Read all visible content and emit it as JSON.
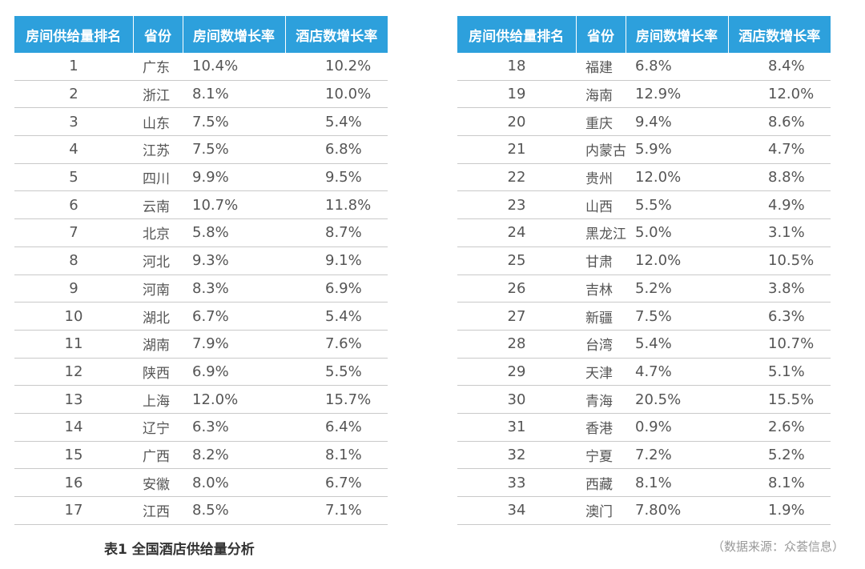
{
  "chart_data": {
    "type": "table",
    "headers": [
      "房间供给量排名",
      "省份",
      "房间数增长率",
      "酒店数增长率"
    ],
    "rows": [
      [
        "1",
        "广东",
        "10.4%",
        "10.2%"
      ],
      [
        "2",
        "浙江",
        "8.1%",
        "10.0%"
      ],
      [
        "3",
        "山东",
        "7.5%",
        "5.4%"
      ],
      [
        "4",
        "江苏",
        "7.5%",
        "6.8%"
      ],
      [
        "5",
        "四川",
        "9.9%",
        "9.5%"
      ],
      [
        "6",
        "云南",
        "10.7%",
        "11.8%"
      ],
      [
        "7",
        "北京",
        "5.8%",
        "8.7%"
      ],
      [
        "8",
        "河北",
        "9.3%",
        "9.1%"
      ],
      [
        "9",
        "河南",
        "8.3%",
        "6.9%"
      ],
      [
        "10",
        "湖北",
        "6.7%",
        "5.4%"
      ],
      [
        "11",
        "湖南",
        "7.9%",
        "7.6%"
      ],
      [
        "12",
        "陕西",
        "6.9%",
        "5.5%"
      ],
      [
        "13",
        "上海",
        "12.0%",
        "15.7%"
      ],
      [
        "14",
        "辽宁",
        "6.3%",
        "6.4%"
      ],
      [
        "15",
        "广西",
        "8.2%",
        "8.1%"
      ],
      [
        "16",
        "安徽",
        "8.0%",
        "6.7%"
      ],
      [
        "17",
        "江西",
        "8.5%",
        "7.1%"
      ],
      [
        "18",
        "福建",
        "6.8%",
        "8.4%"
      ],
      [
        "19",
        "海南",
        "12.9%",
        "12.0%"
      ],
      [
        "20",
        "重庆",
        "9.4%",
        "8.6%"
      ],
      [
        "21",
        "内蒙古",
        "5.9%",
        "4.7%"
      ],
      [
        "22",
        "贵州",
        "12.0%",
        "8.8%"
      ],
      [
        "23",
        "山西",
        "5.5%",
        "4.9%"
      ],
      [
        "24",
        "黑龙江",
        "5.0%",
        "3.1%"
      ],
      [
        "25",
        "甘肃",
        "12.0%",
        "10.5%"
      ],
      [
        "26",
        "吉林",
        "5.2%",
        "3.8%"
      ],
      [
        "27",
        "新疆",
        "7.5%",
        "6.3%"
      ],
      [
        "28",
        "台湾",
        "5.4%",
        "10.7%"
      ],
      [
        "29",
        "天津",
        "4.7%",
        "5.1%"
      ],
      [
        "30",
        "青海",
        "20.5%",
        "15.5%"
      ],
      [
        "31",
        "香港",
        "0.9%",
        "2.6%"
      ],
      [
        "32",
        "宁夏",
        "7.2%",
        "5.2%"
      ],
      [
        "33",
        "西藏",
        "8.1%",
        "8.1%"
      ],
      [
        "34",
        "澳门",
        "7.80%",
        "1.9%"
      ]
    ],
    "split_after_row": 17,
    "caption": "表1 全国酒店供给量分析",
    "source": "（数据来源：众荟信息）",
    "colors": {
      "header_bg": "#2da0dc",
      "header_text": "#ffffff",
      "row_divider": "#c9c9c9",
      "body_text": "#555555"
    }
  }
}
